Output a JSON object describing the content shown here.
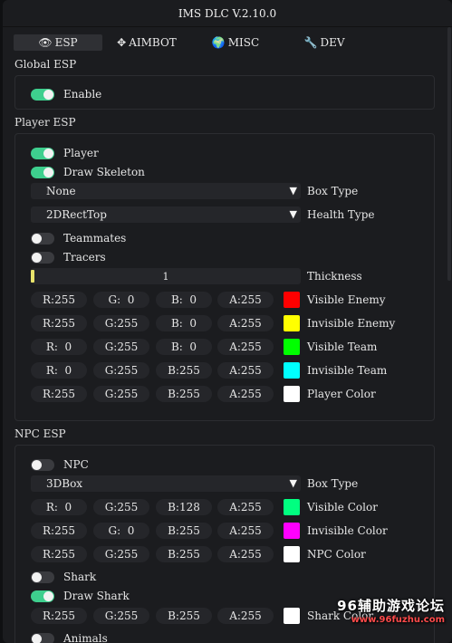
{
  "window": {
    "title": "IMS DLC V.2.10.0"
  },
  "tabs": [
    {
      "icon": "eye-icon",
      "glyph": "👁",
      "label": "ESP"
    },
    {
      "icon": "crosshair-icon",
      "glyph": "✥",
      "label": "AIMBOT"
    },
    {
      "icon": "globe-icon",
      "glyph": "🌍",
      "label": "MISC"
    },
    {
      "icon": "wrench-icon",
      "glyph": "🔧",
      "label": "DEV"
    }
  ],
  "global_esp": {
    "header": "Global ESP",
    "enable_label": "Enable",
    "enable_on": true
  },
  "player_esp": {
    "header": "Player ESP",
    "player_label": "Player",
    "draw_skeleton_label": "Draw Skeleton",
    "box_type_value": "None",
    "box_type_label": "Box Type",
    "health_type_value": "2DRectTop",
    "health_type_label": "Health Type",
    "teammates_label": "Teammates",
    "tracers_label": "Tracers",
    "thickness_value": "1",
    "thickness_label": "Thickness",
    "colors": [
      {
        "r": "R:255",
        "g": "G:  0",
        "b": "B:  0",
        "a": "A:255",
        "swatch": "#ff0000",
        "label": "Visible Enemy"
      },
      {
        "r": "R:255",
        "g": "G:255",
        "b": "B:  0",
        "a": "A:255",
        "swatch": "#ffff00",
        "label": "Invisible Enemy"
      },
      {
        "r": "R:  0",
        "g": "G:255",
        "b": "B:  0",
        "a": "A:255",
        "swatch": "#00ff00",
        "label": "Visible Team"
      },
      {
        "r": "R:  0",
        "g": "G:255",
        "b": "B:255",
        "a": "A:255",
        "swatch": "#00ffff",
        "label": "Invisible Team"
      },
      {
        "r": "R:255",
        "g": "G:255",
        "b": "B:255",
        "a": "A:255",
        "swatch": "#ffffff",
        "label": "Player Color"
      }
    ]
  },
  "npc_esp": {
    "header": "NPC ESP",
    "npc_label": "NPC",
    "box_type_value": "3DBox",
    "box_type_label": "Box Type",
    "colors": [
      {
        "r": "R:  0",
        "g": "G:255",
        "b": "B:128",
        "a": "A:255",
        "swatch": "#00ff80",
        "label": "Visible Color"
      },
      {
        "r": "R:255",
        "g": "G:  0",
        "b": "B:255",
        "a": "A:255",
        "swatch": "#ff00ff",
        "label": "Invisible Color"
      },
      {
        "r": "R:255",
        "g": "G:255",
        "b": "B:255",
        "a": "A:255",
        "swatch": "#ffffff",
        "label": "NPC Color"
      }
    ],
    "shark_label": "Shark",
    "draw_shark_label": "Draw Shark",
    "shark_color": {
      "r": "R:255",
      "g": "G:255",
      "b": "B:255",
      "a": "A:255",
      "swatch": "#ffffff",
      "label": "Shark Color"
    },
    "animals_label": "Animals"
  },
  "watermark": {
    "line1": "96辅助游戏论坛",
    "line2": "www.96fuzhu.com"
  }
}
